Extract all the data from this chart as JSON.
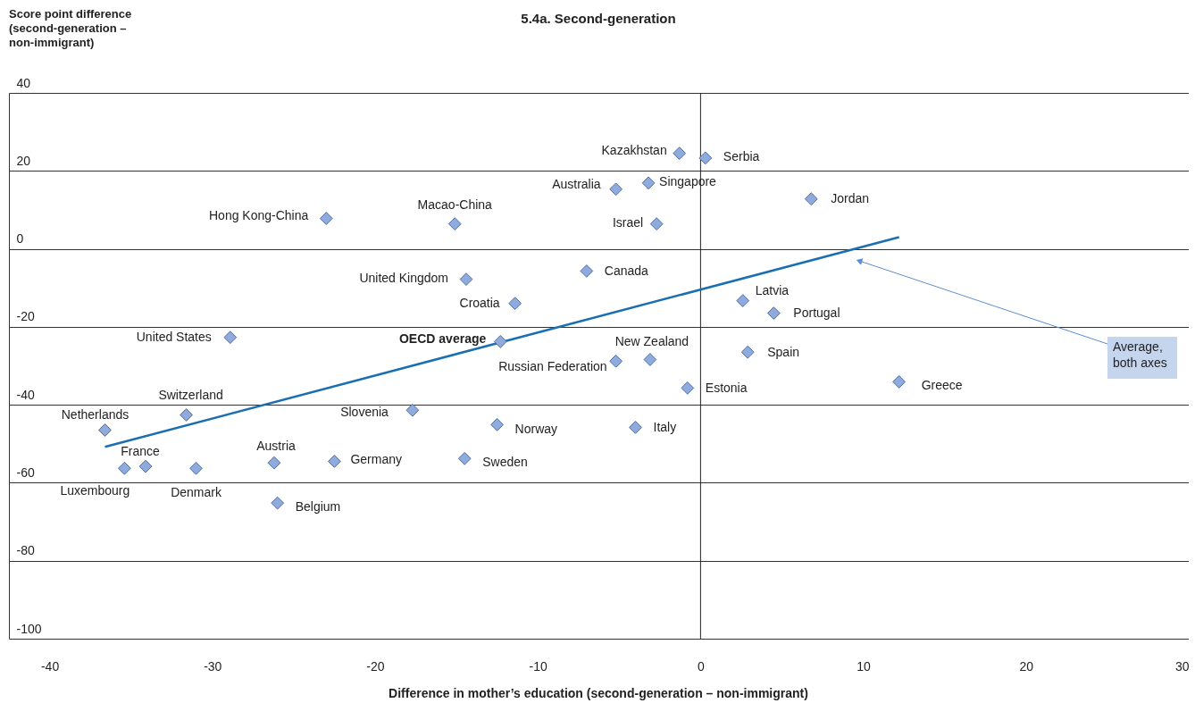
{
  "chart_data": {
    "type": "scatter",
    "title": "5.4a. Second-generation",
    "xlabel": "Difference in mother’s education (second-generation – non-immigrant)",
    "ylabel": "Score point difference (second-generation – non-immigrant)",
    "x": [
      -1.3,
      0.3,
      -3.2,
      -5.2,
      6.8,
      -23.0,
      -15.1,
      -2.7,
      -7.0,
      -14.4,
      2.6,
      -11.4,
      4.5,
      -28.9,
      2.9,
      -5.2,
      -3.1,
      12.2,
      -0.8,
      -17.7,
      -31.6,
      -36.6,
      -12.5,
      -4.0,
      -14.5,
      -22.5,
      -26.2,
      -34.1,
      -35.4,
      -31.0,
      -26.0
    ],
    "series": [
      {
        "color": "#8faadc",
        "values": [
          24.5,
          23.3,
          16.9,
          15.3,
          12.8,
          7.8,
          6.4,
          6.4,
          -5.7,
          -7.8,
          -13.3,
          -14.0,
          -16.5,
          -22.7,
          -26.5,
          -28.8,
          -28.4,
          -34.1,
          -35.7,
          -41.4,
          -42.6,
          -46.5,
          -45.1,
          -45.8,
          -53.8,
          -54.5,
          -54.9,
          -55.8,
          -56.3,
          -56.3,
          -65.2
        ]
      },
      {
        "name": "OECD average",
        "color": "#8faadc",
        "x": [
          -12.3
        ],
        "values": [
          -23.8
        ]
      },
      {
        "type": "line",
        "marker": "none",
        "color": "#1a6fb3",
        "x": [
          -36.6,
          12.2
        ],
        "values": [
          -50.8,
          3.0
        ]
      }
    ],
    "xlim": [
      -42.5,
      30
    ],
    "xticks": [
      -40,
      -30,
      -20,
      -10,
      0,
      10,
      20,
      30
    ],
    "ylim": [
      -100,
      40
    ],
    "yticks": [
      -100,
      -80,
      -60,
      -40,
      -20,
      0,
      20,
      40
    ],
    "grid": "y",
    "marker": "diamond",
    "ref_lines": [
      {
        "axis": "x",
        "value": 0
      }
    ],
    "annotations": [
      {
        "text": "Kazakhstan",
        "x": -1.3,
        "y": 24.5
      },
      {
        "text": "Serbia",
        "x": 0.3,
        "y": 23.3
      },
      {
        "text": "Singapore",
        "x": -3.2,
        "y": 16.9
      },
      {
        "text": "Australia",
        "x": -5.2,
        "y": 15.3
      },
      {
        "text": "Jordan",
        "x": 6.8,
        "y": 12.8
      },
      {
        "text": "Hong Kong-China",
        "x": -23.0,
        "y": 7.8
      },
      {
        "text": "Macao-China",
        "x": -15.1,
        "y": 6.4
      },
      {
        "text": "Israel",
        "x": -2.7,
        "y": 6.4
      },
      {
        "text": "Canada",
        "x": -7.0,
        "y": -5.7
      },
      {
        "text": "United Kingdom",
        "x": -14.4,
        "y": -7.8
      },
      {
        "text": "Latvia",
        "x": 2.6,
        "y": -13.3
      },
      {
        "text": "Croatia",
        "x": -11.4,
        "y": -14.0
      },
      {
        "text": "Portugal",
        "x": 4.5,
        "y": -16.5
      },
      {
        "text": "United States",
        "x": -28.9,
        "y": -22.7
      },
      {
        "text": "Spain",
        "x": 2.9,
        "y": -26.5
      },
      {
        "text": "Russian Federation",
        "x": -5.2,
        "y": -28.8
      },
      {
        "text": "New Zealand",
        "x": -3.1,
        "y": -28.4
      },
      {
        "text": "Greece",
        "x": 12.2,
        "y": -34.1
      },
      {
        "text": "Estonia",
        "x": -0.8,
        "y": -35.7
      },
      {
        "text": "Slovenia",
        "x": -17.7,
        "y": -41.4
      },
      {
        "text": "Switzerland",
        "x": -31.6,
        "y": -42.6
      },
      {
        "text": "Netherlands",
        "x": -36.6,
        "y": -46.5
      },
      {
        "text": "Norway",
        "x": -12.5,
        "y": -45.1
      },
      {
        "text": "Italy",
        "x": -4.0,
        "y": -45.8
      },
      {
        "text": "Sweden",
        "x": -14.5,
        "y": -53.8
      },
      {
        "text": "Germany",
        "x": -22.5,
        "y": -54.5
      },
      {
        "text": "Austria",
        "x": -26.2,
        "y": -54.9
      },
      {
        "text": "France",
        "x": -34.1,
        "y": -55.8
      },
      {
        "text": "Luxembourg",
        "x": -35.4,
        "y": -56.3
      },
      {
        "text": "Denmark",
        "x": -31.0,
        "y": -56.3
      },
      {
        "text": "Belgium",
        "x": -26.0,
        "y": -65.2
      },
      "Average, both axes"
    ]
  }
}
